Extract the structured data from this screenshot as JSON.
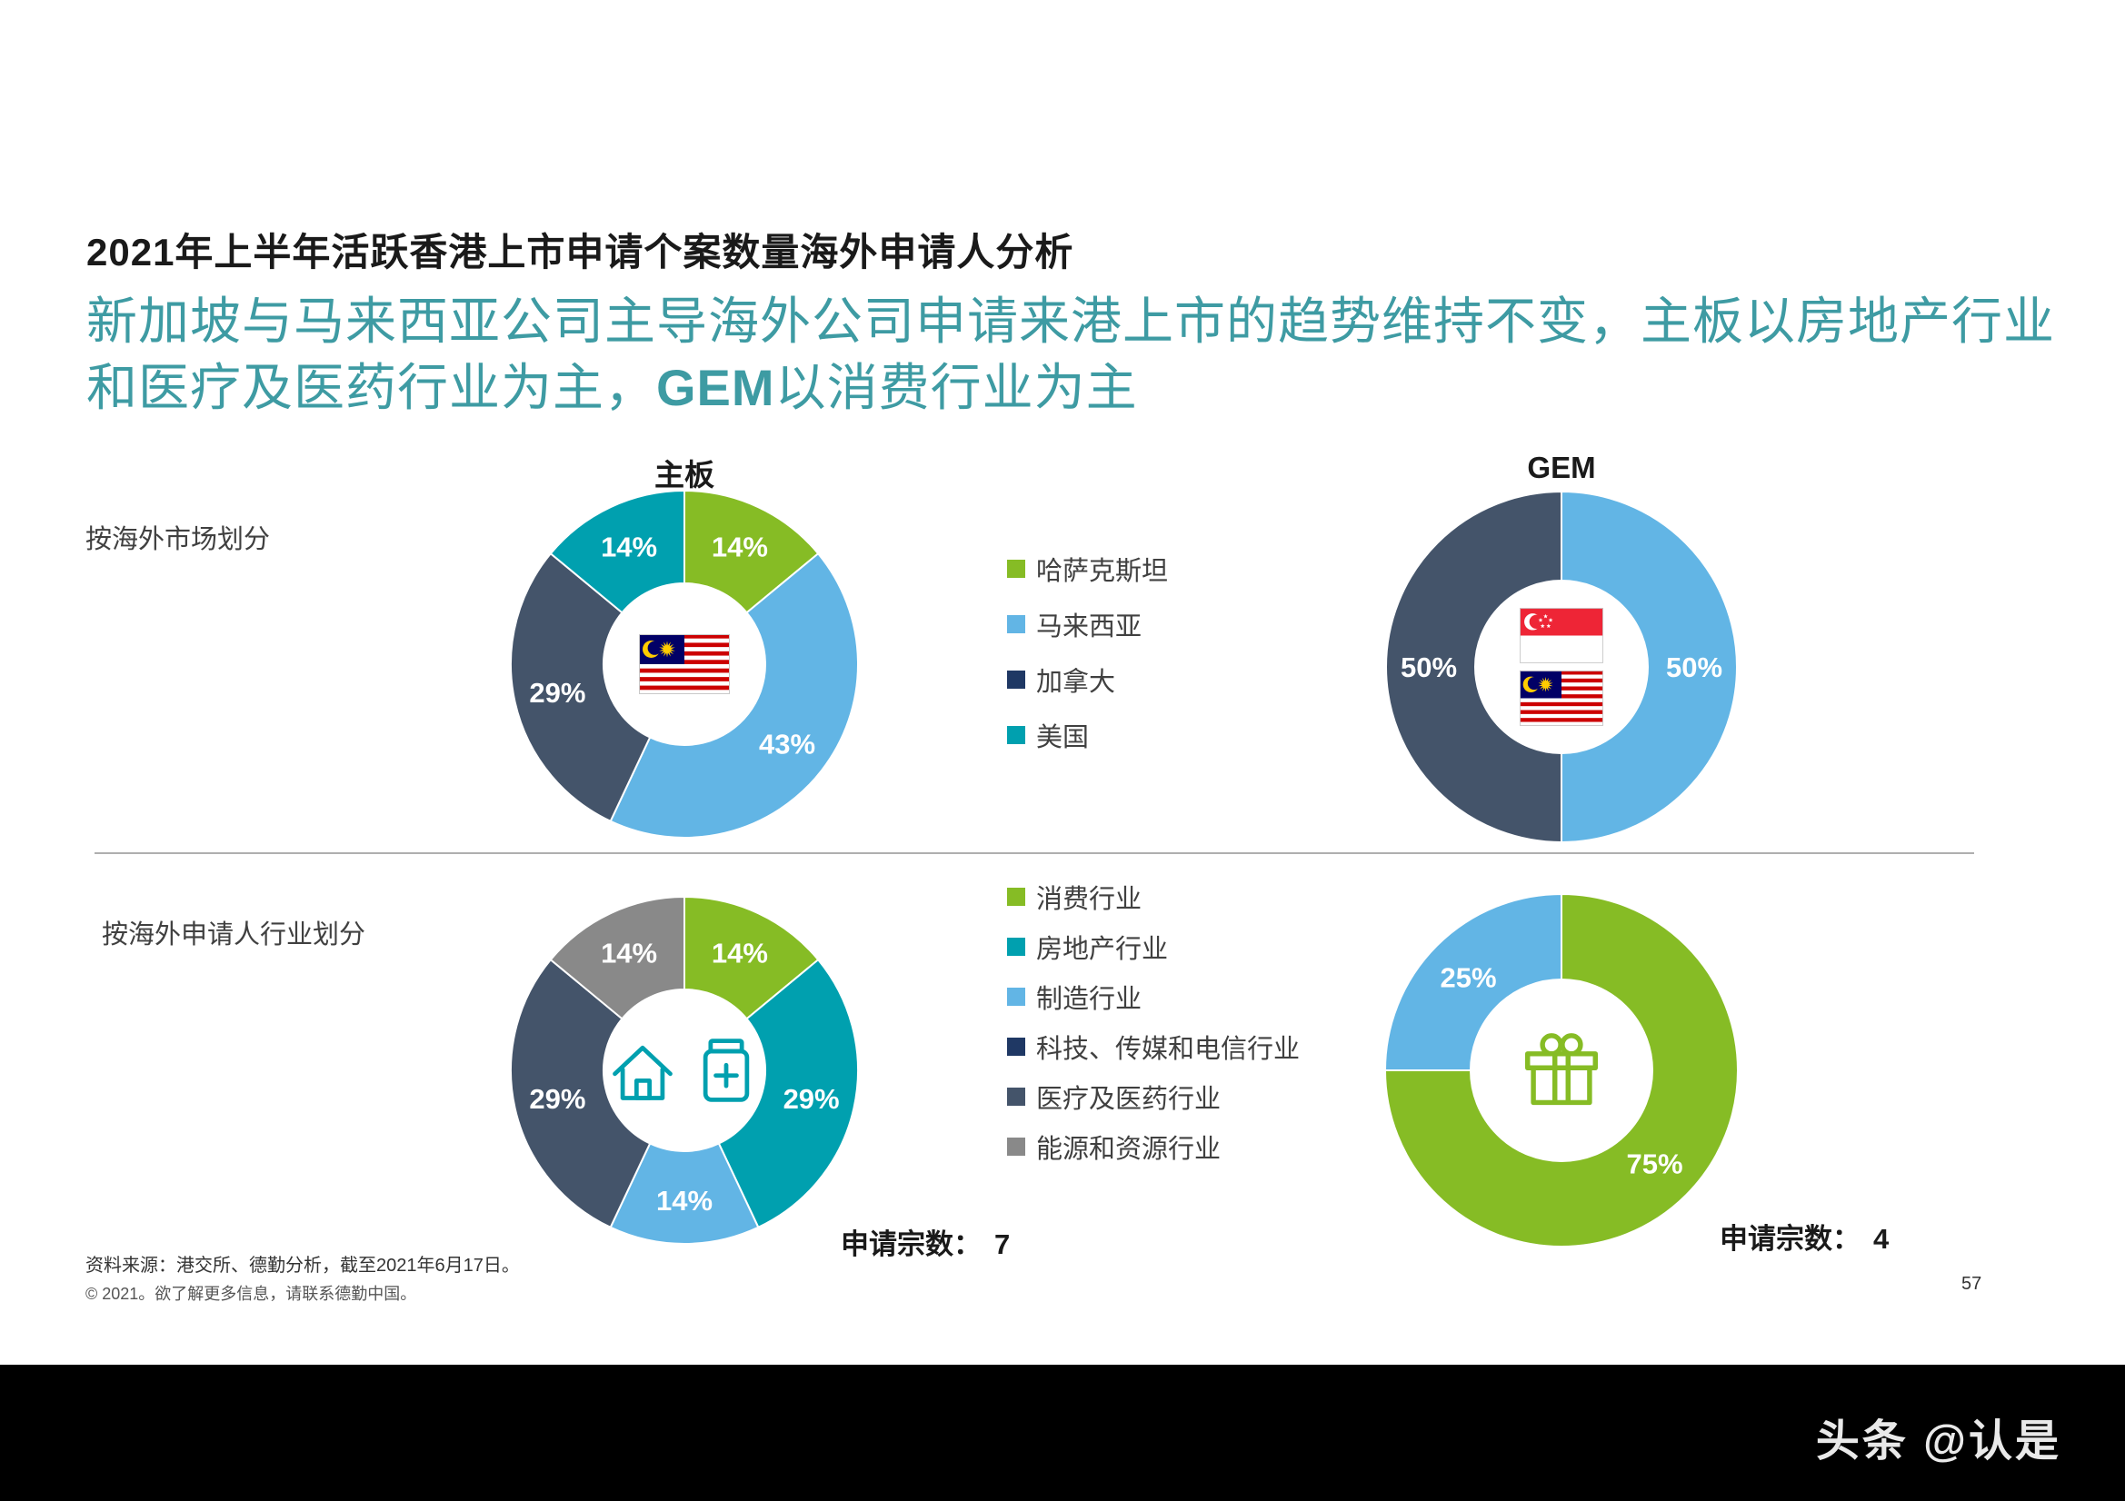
{
  "header": {
    "title": "2021年上半年活跃香港上市申请个案数量海外申请人分析",
    "subtitle_part1": "新加坡与马来西亚公司主导海外公司申请来港上市的趋势维持不变，主板以房地产行业和医疗及医药行业为主，",
    "subtitle_bold": "GEM",
    "subtitle_part2": "以消费行业为主"
  },
  "rows": {
    "market_label": "按海外市场划分",
    "industry_label": "按海外申请人行业划分"
  },
  "colors": {
    "green": "#86BC25",
    "light_blue": "#62B5E5",
    "teal": "#00A0AF",
    "slate": "#44546A",
    "navy": "#1F3864",
    "gray": "#898989",
    "subtitle_teal": "#3E9BA3"
  },
  "chart_data": [
    {
      "id": "main-board-market",
      "type": "pie",
      "title": "主板",
      "group": "按海外市场划分",
      "slices": [
        {
          "label": "哈萨克斯坦",
          "value": 14,
          "text": "14%",
          "color": "#86BC25"
        },
        {
          "label": "马来西亚",
          "value": 43,
          "text": "43%",
          "color": "#62B5E5"
        },
        {
          "label": "加拿大",
          "value": 29,
          "text": "29%",
          "color": "#44546A"
        },
        {
          "label": "美国",
          "value": 14,
          "text": "14%",
          "color": "#00A0AF"
        }
      ],
      "center_icons": [
        "malaysia-flag"
      ],
      "center_layout": "row"
    },
    {
      "id": "gem-market",
      "type": "pie",
      "title": "GEM",
      "group": "按海外市场划分",
      "slices": [
        {
          "label": "马来西亚",
          "value": 50,
          "text": "50%",
          "color": "#62B5E5"
        },
        {
          "label": "加拿大",
          "value": 50,
          "text": "50%",
          "color": "#44546A"
        }
      ],
      "center_icons": [
        "singapore-flag",
        "malaysia-flag"
      ],
      "center_layout": "column"
    },
    {
      "id": "main-board-industry",
      "type": "pie",
      "title": "主板",
      "group": "按海外申请人行业划分",
      "slices": [
        {
          "label": "消费行业",
          "value": 14,
          "text": "14%",
          "color": "#86BC25"
        },
        {
          "label": "房地产行业",
          "value": 29,
          "text": "29%",
          "color": "#00A0AF"
        },
        {
          "label": "制造行业",
          "value": 14,
          "text": "14%",
          "color": "#62B5E5"
        },
        {
          "label": "医疗及医药行业",
          "value": 29,
          "text": "29%",
          "color": "#44546A"
        },
        {
          "label": "能源和资源行业",
          "value": 14,
          "text": "14%",
          "color": "#898989"
        }
      ],
      "center_icons": [
        "house",
        "medicine"
      ],
      "center_layout": "row"
    },
    {
      "id": "gem-industry",
      "type": "pie",
      "title": "GEM",
      "group": "按海外申请人行业划分",
      "slices": [
        {
          "label": "消费行业",
          "value": 75,
          "text": "75%",
          "color": "#86BC25"
        },
        {
          "label": "制造行业",
          "value": 25,
          "text": "25%",
          "color": "#62B5E5"
        }
      ],
      "center_icons": [
        "gift"
      ],
      "center_layout": "row"
    }
  ],
  "legends": {
    "market": [
      {
        "label": "哈萨克斯坦",
        "color": "#86BC25"
      },
      {
        "label": "马来西亚",
        "color": "#62B5E5"
      },
      {
        "label": "加拿大",
        "color": "#1F3864"
      },
      {
        "label": "美国",
        "color": "#00A0AF"
      }
    ],
    "industry": [
      {
        "label": "消费行业",
        "color": "#86BC25"
      },
      {
        "label": "房地产行业",
        "color": "#00A0AF"
      },
      {
        "label": "制造行业",
        "color": "#62B5E5"
      },
      {
        "label": "科技、传媒和电信行业",
        "color": "#1F3864"
      },
      {
        "label": "医疗及医药行业",
        "color": "#44546A"
      },
      {
        "label": "能源和资源行业",
        "color": "#898989"
      }
    ]
  },
  "counts": {
    "main_board_label": "申请宗数：",
    "main_board_value": "7",
    "gem_label": "申请宗数：",
    "gem_value": "4"
  },
  "footer": {
    "source": "资料来源：港交所、德勤分析，截至2021年6月17日。",
    "copyright": "© 2021。欲了解更多信息，请联系德勤中国。",
    "page_number": "57",
    "watermark": "头条 @认是"
  },
  "icons": {
    "malaysia-flag": "malaysia-flag-icon",
    "singapore-flag": "singapore-flag-icon",
    "house": "house-icon",
    "medicine": "medicine-bottle-icon",
    "gift": "gift-icon"
  }
}
